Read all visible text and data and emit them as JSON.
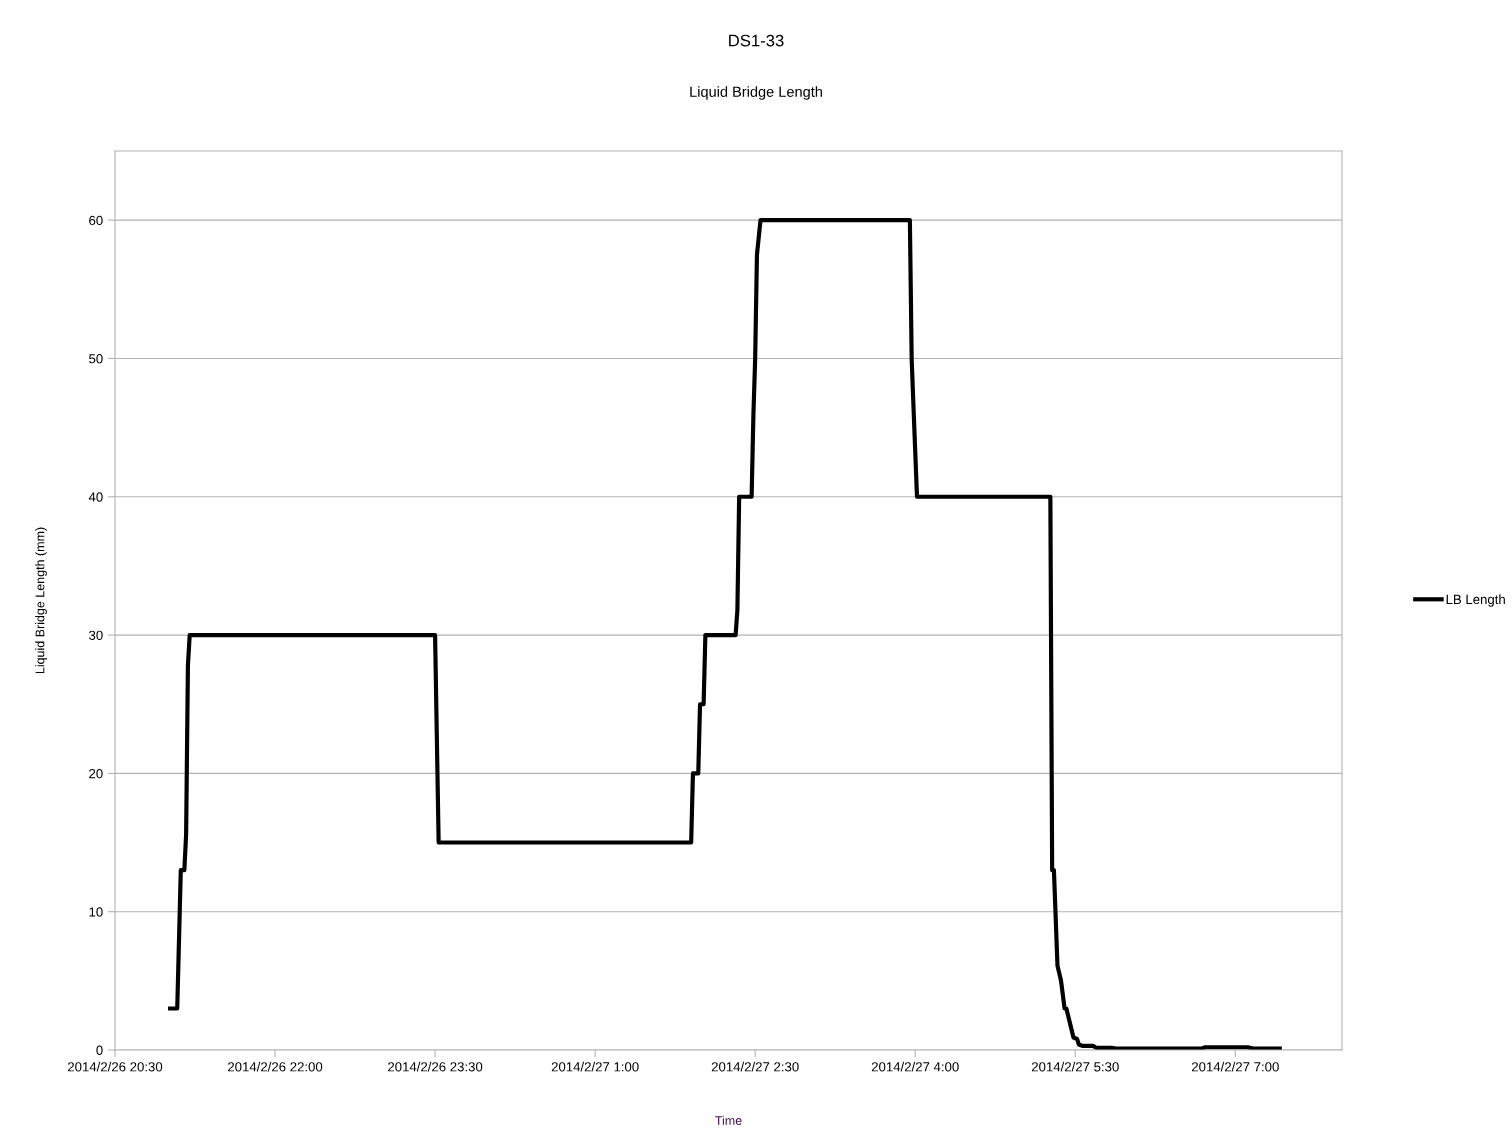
{
  "chart_data": {
    "type": "line",
    "title": "DS1-33",
    "subtitle": "Liquid Bridge Length",
    "xlabel": "Time",
    "ylabel": "Liquid Bridge Length (mm)",
    "x": [
      "2014-02-26T21:01",
      "2014-02-26T21:05",
      "2014-02-26T21:07",
      "2014-02-26T21:09",
      "2014-02-26T21:10",
      "2014-02-26T21:11",
      "2014-02-26T21:12",
      "2014-02-26T23:30",
      "2014-02-26T23:32",
      "2014-02-27T01:54",
      "2014-02-27T01:55",
      "2014-02-27T01:58",
      "2014-02-27T01:59",
      "2014-02-27T02:01",
      "2014-02-27T02:02",
      "2014-02-27T02:19",
      "2014-02-27T02:20",
      "2014-02-27T02:21",
      "2014-02-27T02:28",
      "2014-02-27T02:29",
      "2014-02-27T02:30",
      "2014-02-27T02:31",
      "2014-02-27T02:33",
      "2014-02-27T03:57",
      "2014-02-27T03:58",
      "2014-02-27T03:59",
      "2014-02-27T04:01",
      "2014-02-27T05:16",
      "2014-02-27T05:17",
      "2014-02-27T05:18",
      "2014-02-27T05:20",
      "2014-02-27T05:22",
      "2014-02-27T05:24",
      "2014-02-27T05:25",
      "2014-02-27T05:29",
      "2014-02-27T05:31",
      "2014-02-27T05:32",
      "2014-02-27T05:34",
      "2014-02-27T05:40",
      "2014-02-27T05:42",
      "2014-02-27T05:51",
      "2014-02-27T05:53",
      "2014-02-27T06:41",
      "2014-02-27T06:43",
      "2014-02-27T07:07",
      "2014-02-27T07:10",
      "2014-02-27T07:25"
    ],
    "series": [
      {
        "name": "LB Length",
        "color": "#000000",
        "values": [
          3,
          3,
          13,
          13,
          15.6,
          27.8,
          30,
          30,
          15,
          15,
          20,
          20,
          25,
          25,
          30,
          30,
          31.8,
          40,
          40,
          45.9,
          50,
          57.5,
          60,
          60,
          50,
          46.6,
          40,
          40,
          13,
          13,
          6.1,
          5,
          3,
          3,
          0.9,
          0.8,
          0.4,
          0.3,
          0.3,
          0.15,
          0.15,
          0.1,
          0.1,
          0.2,
          0.2,
          0.1,
          0.1
        ]
      }
    ],
    "xlim": [
      "2014-02-26T20:30",
      "2014-02-27T08:00"
    ],
    "xticks": [
      {
        "value": "2014-02-26T20:30",
        "label": "2014/2/26 20:30"
      },
      {
        "value": "2014-02-26T22:00",
        "label": "2014/2/26 22:00"
      },
      {
        "value": "2014-02-26T23:30",
        "label": "2014/2/26 23:30"
      },
      {
        "value": "2014-02-27T01:00",
        "label": "2014/2/27 1:00"
      },
      {
        "value": "2014-02-27T02:30",
        "label": "2014/2/27 2:30"
      },
      {
        "value": "2014-02-27T04:00",
        "label": "2014/2/27 4:00"
      },
      {
        "value": "2014-02-27T05:30",
        "label": "2014/2/27 5:30"
      },
      {
        "value": "2014-02-27T07:00",
        "label": "2014/2/27 7:00"
      }
    ],
    "ylim": [
      0,
      65
    ],
    "yticks": [
      0,
      10,
      20,
      30,
      40,
      50,
      60
    ],
    "grid": "y",
    "legend": "right",
    "marker": "none",
    "line_style": "solid"
  }
}
